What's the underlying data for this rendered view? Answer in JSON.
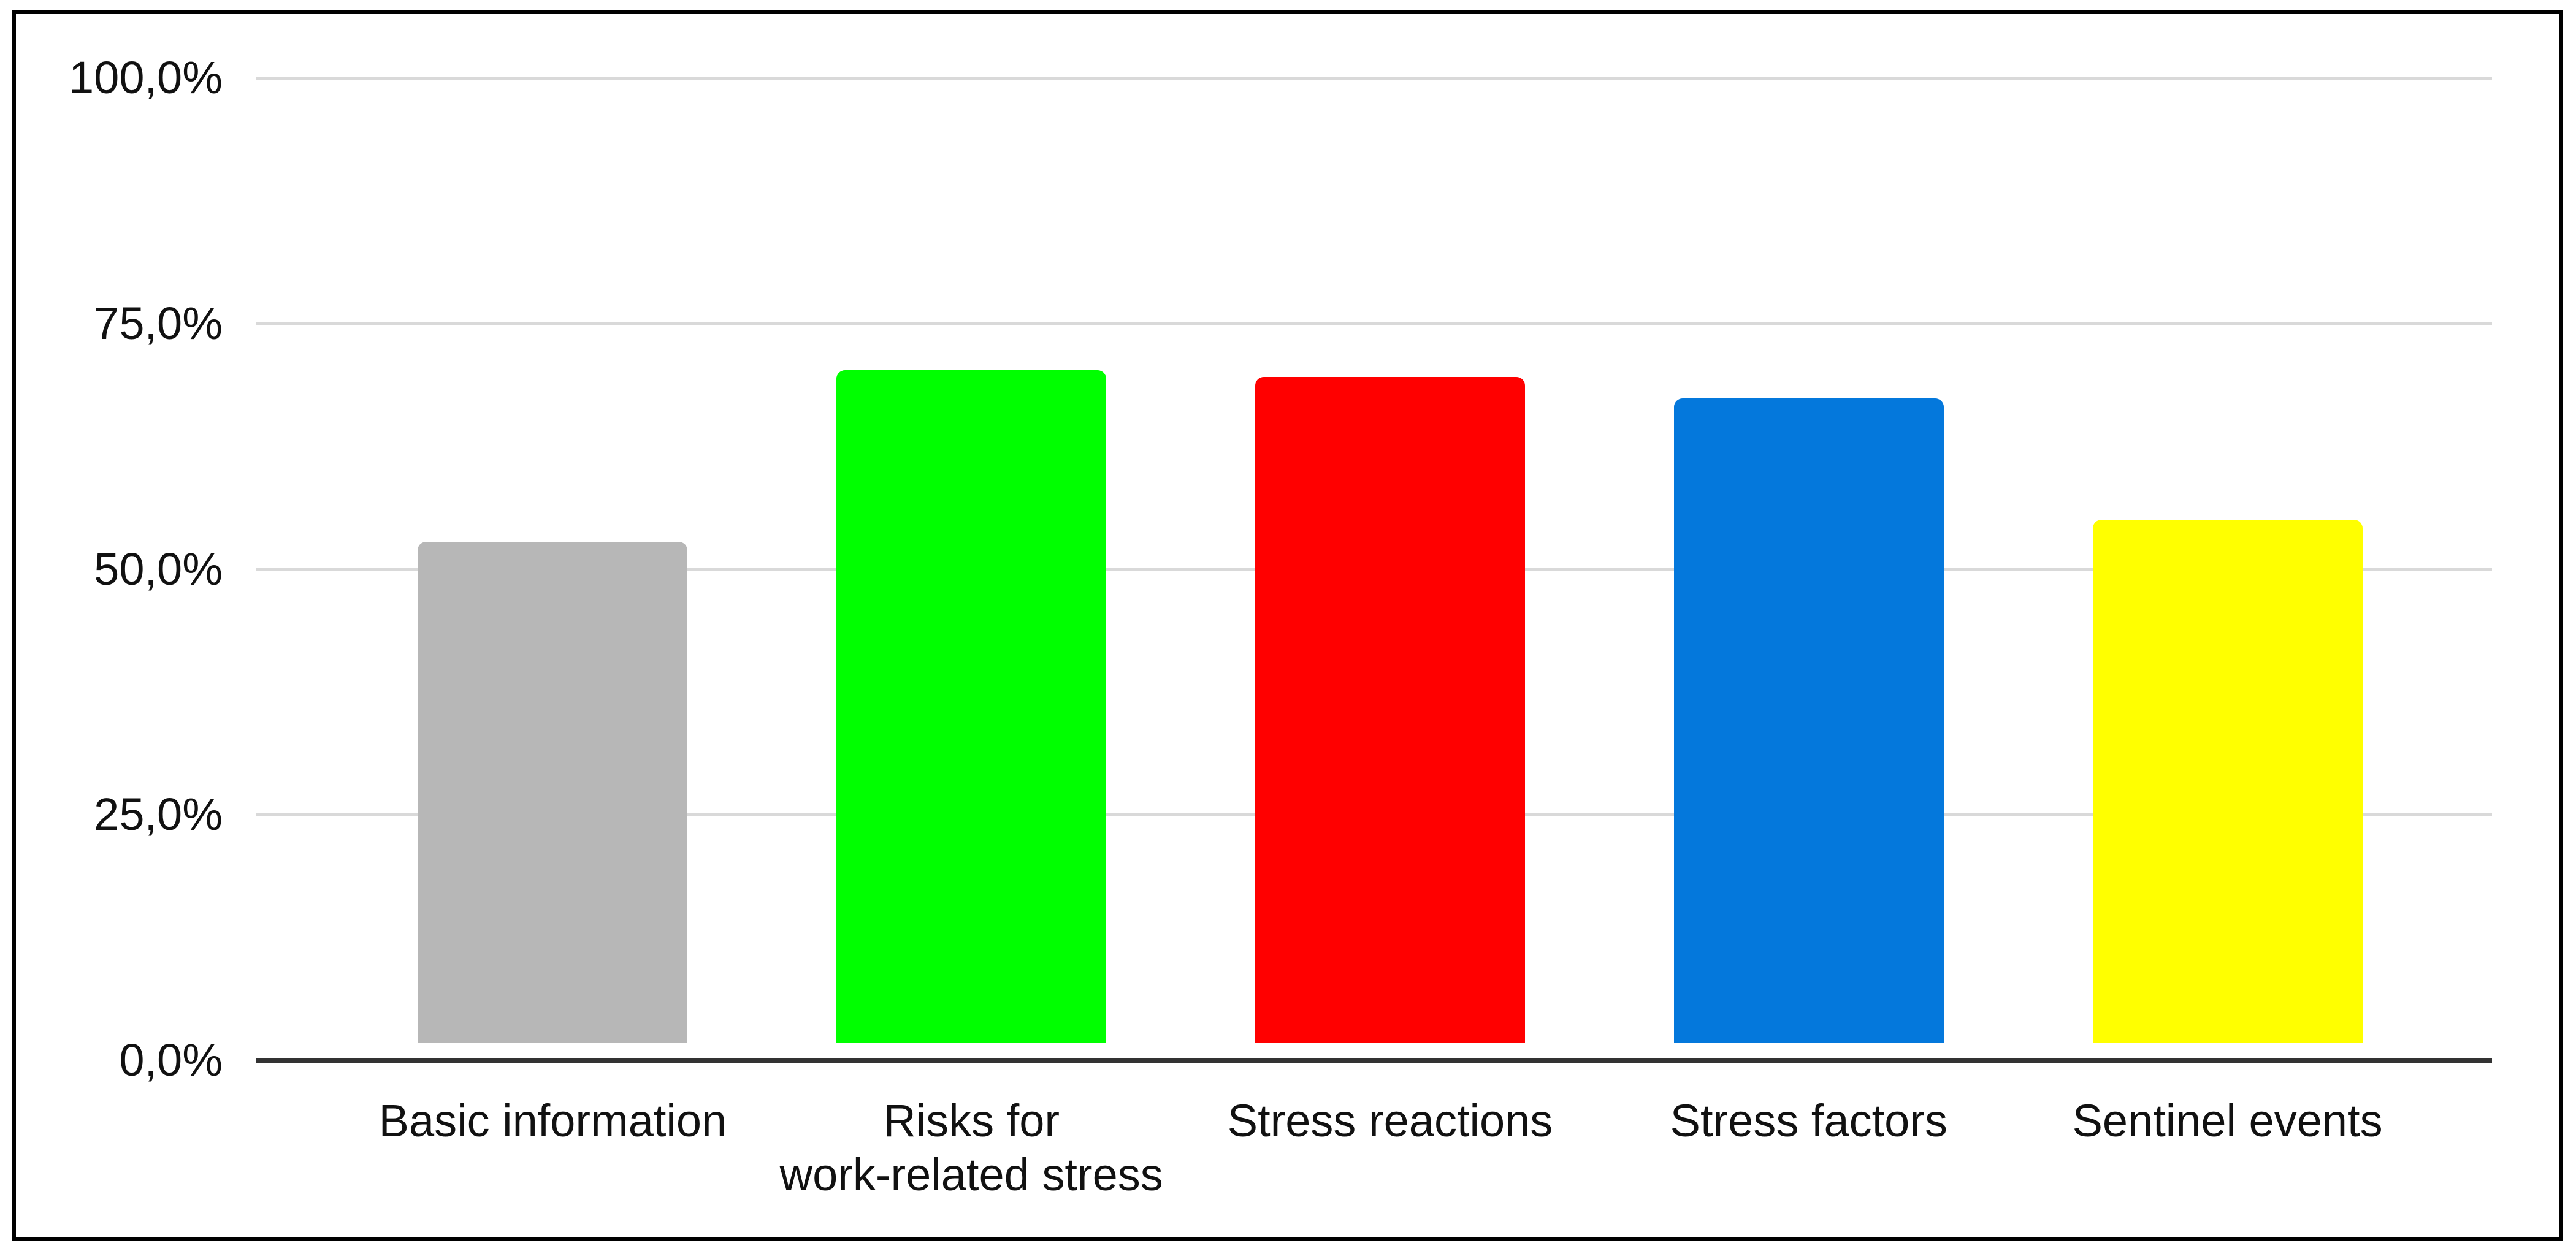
{
  "chart_data": {
    "type": "bar",
    "title": "",
    "xlabel": "",
    "ylabel": "",
    "categories": [
      "Basic information",
      "Risks for\nwork-related stress",
      "Stress reactions",
      "Stress factors",
      "Sentinel events"
    ],
    "values": [
      51.0,
      68.5,
      67.8,
      65.6,
      53.3
    ],
    "bar_colors": [
      "#b7b7b7",
      "#00ff00",
      "#ff0000",
      "#0478dc",
      "#ffff00"
    ],
    "yticks": [
      {
        "value": 0,
        "label": "0,0%"
      },
      {
        "value": 25,
        "label": "25,0%"
      },
      {
        "value": 50,
        "label": "50,0%"
      },
      {
        "value": 75,
        "label": "75,0%"
      },
      {
        "value": 100,
        "label": "100,0%"
      }
    ],
    "ylim": [
      0,
      100
    ],
    "grid": true,
    "legend": "none",
    "value_format": "comma-decimal-percent"
  },
  "colors": {
    "background": "#ffffff",
    "frame_border": "#000000",
    "gridline": "#d9d9d9",
    "axis_line": "#333333",
    "label_text": "#111111"
  }
}
